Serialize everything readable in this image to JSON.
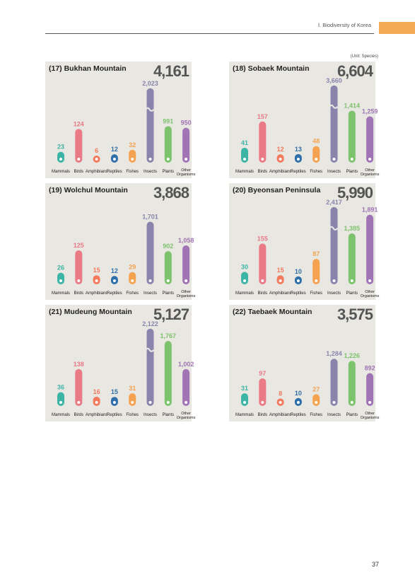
{
  "header": {
    "section": "Ⅰ. Biodiversity of Korea"
  },
  "unit_label": "(Unit: Species)",
  "page_number": "37",
  "colors": [
    "#3db5a6",
    "#e97a86",
    "#f37a5c",
    "#2f6faa",
    "#f4a24f",
    "#8a84ad",
    "#7dc26c",
    "#a074b5"
  ],
  "chart_data": [
    {
      "type": "bar",
      "title": "(17) Bukhan Mountain",
      "total": "4,161",
      "categories": [
        "Mammals",
        "Birds",
        "Amphibians",
        "Reptiles",
        "Fishes",
        "Insects",
        "Plants",
        "Other Organisms"
      ],
      "values": [
        23,
        124,
        6,
        12,
        32,
        2023,
        991,
        950
      ],
      "value_labels": [
        "23",
        "124",
        "6",
        "12",
        "32",
        "2,023",
        "991",
        "950"
      ],
      "broken_axis": "Insects"
    },
    {
      "type": "bar",
      "title": "(18) Sobaek Mountain",
      "total": "6,604",
      "categories": [
        "Mammals",
        "Birds",
        "Amphibians",
        "Reptiles",
        "Fishes",
        "Insects",
        "Plants",
        "Other Organisms"
      ],
      "values": [
        41,
        157,
        12,
        13,
        48,
        3660,
        1414,
        1259
      ],
      "value_labels": [
        "41",
        "157",
        "12",
        "13",
        "48",
        "3,660",
        "1,414",
        "1,259"
      ],
      "broken_axis": "Insects"
    },
    {
      "type": "bar",
      "title": "(19) Wolchul Mountain",
      "total": "3,868",
      "categories": [
        "Mammals",
        "Birds",
        "Amphibians",
        "Reptiles",
        "Fishes",
        "Insects",
        "Plants",
        "Other Organisms"
      ],
      "values": [
        26,
        125,
        15,
        12,
        29,
        1701,
        902,
        1058
      ],
      "value_labels": [
        "26",
        "125",
        "15",
        "12",
        "29",
        "1,701",
        "902",
        "1,058"
      ]
    },
    {
      "type": "bar",
      "title": "(20) Byeonsan Peninsula",
      "total": "5,990",
      "categories": [
        "Mammals",
        "Birds",
        "Amphibians",
        "Reptiles",
        "Fishes",
        "Insects",
        "Plants",
        "Other Organisms"
      ],
      "values": [
        30,
        155,
        15,
        10,
        87,
        2417,
        1385,
        1891
      ],
      "value_labels": [
        "30",
        "155",
        "15",
        "10",
        "87",
        "2,417",
        "1,385",
        "1,891"
      ],
      "broken_axis": "Insects"
    },
    {
      "type": "bar",
      "title": "(21) Mudeung Mountain",
      "total": "5,127",
      "categories": [
        "Mammals",
        "Birds",
        "Amphibians",
        "Reptiles",
        "Fishes",
        "Insects",
        "Plants",
        "Other Organisms"
      ],
      "values": [
        36,
        138,
        16,
        15,
        31,
        2122,
        1767,
        1002
      ],
      "value_labels": [
        "36",
        "138",
        "16",
        "15",
        "31",
        "2,122",
        "1,767",
        "1,002"
      ],
      "broken_axis": "Insects"
    },
    {
      "type": "bar",
      "title": "(22) Taebaek Mountain",
      "total": "3,575",
      "categories": [
        "Mammals",
        "Birds",
        "Amphibians",
        "Reptiles",
        "Fishes",
        "Insects",
        "Plants",
        "Other Organisms"
      ],
      "values": [
        31,
        97,
        8,
        10,
        27,
        1284,
        1226,
        892
      ],
      "value_labels": [
        "31",
        "97",
        "8",
        "10",
        "27",
        "1,284",
        "1,226",
        "892"
      ]
    }
  ]
}
